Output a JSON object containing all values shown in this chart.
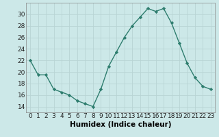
{
  "x": [
    0,
    1,
    2,
    3,
    4,
    5,
    6,
    7,
    8,
    9,
    10,
    11,
    12,
    13,
    14,
    15,
    16,
    17,
    18,
    19,
    20,
    21,
    22,
    23
  ],
  "y": [
    22,
    19.5,
    19.5,
    17,
    16.5,
    16,
    15,
    14.5,
    14,
    17,
    21,
    23.5,
    26,
    28,
    29.5,
    31,
    30.5,
    31,
    28.5,
    25,
    21.5,
    19,
    17.5,
    17
  ],
  "line_color": "#2e7d6e",
  "marker": "D",
  "marker_size": 2.2,
  "bg_color": "#cce8e8",
  "grid_color": "#b8d4d4",
  "xlabel": "Humidex (Indice chaleur)",
  "ylim": [
    13,
    32
  ],
  "yticks": [
    14,
    16,
    18,
    20,
    22,
    24,
    26,
    28,
    30
  ],
  "xlim": [
    -0.5,
    23.5
  ],
  "xticks": [
    0,
    1,
    2,
    3,
    4,
    5,
    6,
    7,
    8,
    9,
    10,
    11,
    12,
    13,
    14,
    15,
    16,
    17,
    18,
    19,
    20,
    21,
    22,
    23
  ],
  "tick_label_fontsize": 6.5,
  "xlabel_fontsize": 7.5,
  "line_width": 1.0
}
